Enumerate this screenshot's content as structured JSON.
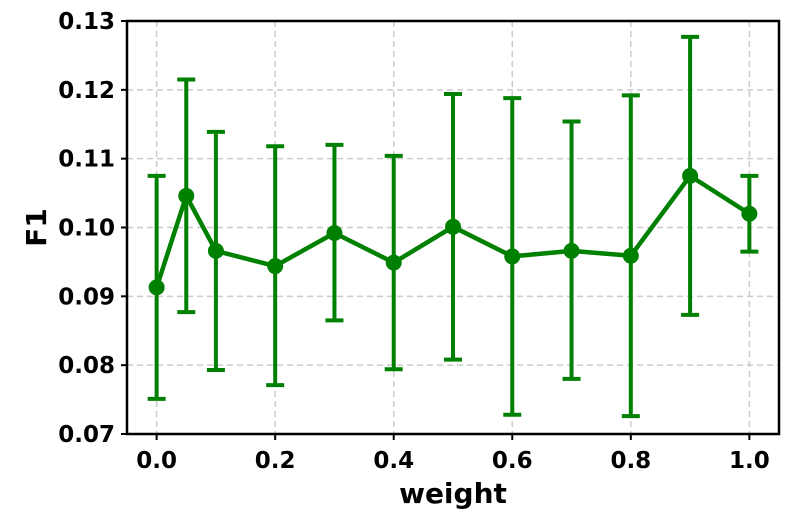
{
  "chart_data": {
    "type": "line",
    "title": "",
    "xlabel": "weight",
    "ylabel": "F1",
    "xlim": [
      -0.05,
      1.05
    ],
    "ylim": [
      0.07,
      0.13
    ],
    "xticks": [
      "0.0",
      "0.2",
      "0.4",
      "0.6",
      "0.8",
      "1.0"
    ],
    "yticks": [
      "0.07",
      "0.08",
      "0.09",
      "0.10",
      "0.11",
      "0.12",
      "0.13"
    ],
    "grid": true,
    "legend": "none",
    "color": "#008000",
    "series": [
      {
        "x": [
          0.0,
          0.05,
          0.1,
          0.2,
          0.3,
          0.4,
          0.5,
          0.6,
          0.7,
          0.8,
          0.9,
          1.0
        ],
        "y": [
          0.0913,
          0.1046,
          0.0966,
          0.0944,
          0.0992,
          0.0949,
          0.1001,
          0.0958,
          0.0966,
          0.0959,
          0.1075,
          0.102
        ],
        "err_low": [
          0.0751,
          0.0877,
          0.0793,
          0.0771,
          0.0865,
          0.0794,
          0.0808,
          0.0728,
          0.078,
          0.0726,
          0.0873,
          0.0965
        ],
        "err_high": [
          0.1075,
          0.1215,
          0.1139,
          0.1118,
          0.112,
          0.1104,
          0.1194,
          0.1188,
          0.1154,
          0.1192,
          0.1277,
          0.1075
        ]
      }
    ]
  }
}
